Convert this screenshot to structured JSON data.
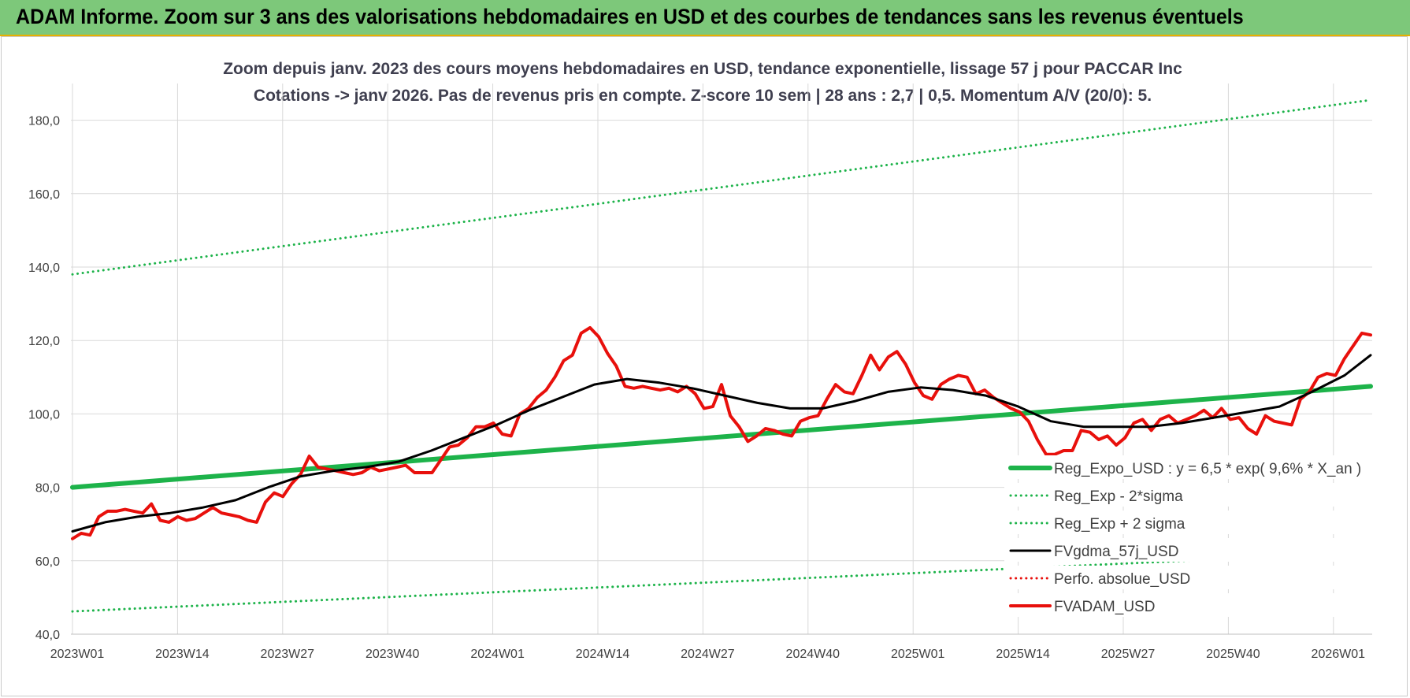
{
  "banner": {
    "title": "ADAM Informe. Zoom sur 3 ans des valorisations hebdomadaires en USD et des courbes de tendances sans les revenus éventuels"
  },
  "colors": {
    "banner_bg": "#7dc87a",
    "trend": "#1db34a",
    "fv57": "#000000",
    "fvadam": "#e8100c",
    "perfo": "#e8100c"
  },
  "chart_data": {
    "type": "line",
    "title": "Zoom depuis janv. 2023 des cours moyens hebdomadaires en USD, tendance exponentielle, lissage 57 j pour PACCAR Inc",
    "subtitle": "Cotations -> janv 2026. Pas de revenus pris en compte. Z-score 10 sem | 28 ans : 2,7 | 0,5. Momentum A/V (20/0): 5.",
    "xlabel": "",
    "ylabel": "",
    "ylim": [
      40,
      190
    ],
    "grid": true,
    "legend_position": "bottom-right",
    "y_ticks": [
      "40,0",
      "60,0",
      "80,0",
      "100,0",
      "120,0",
      "140,0",
      "160,0",
      "180,0"
    ],
    "x_tick_labels": [
      "2023W01",
      "2023W14",
      "2023W27",
      "2023W40",
      "2024W01",
      "2024W14",
      "2024W27",
      "2024W40",
      "2025W01",
      "2025W14",
      "2025W27",
      "2025W40",
      "2026W01"
    ],
    "n_weeks": 162,
    "series": [
      {
        "name": "Reg_Expo_USD : y = 6,5 * exp( 9,6% * X_an )",
        "style": "solid-thick",
        "color": "#1db34a",
        "points": [
          [
            0,
            80.0
          ],
          [
            161,
            107.5
          ]
        ]
      },
      {
        "name": "Reg_Exp - 2*sigma",
        "style": "dotted",
        "color": "#1db34a",
        "points": [
          [
            0,
            46.2
          ],
          [
            161,
            62.3
          ]
        ]
      },
      {
        "name": "Reg_Exp + 2 sigma",
        "style": "dotted",
        "color": "#1db34a",
        "points": [
          [
            0,
            138.0
          ],
          [
            161,
            185.5
          ]
        ]
      },
      {
        "name": "FVgdma_57j_USD",
        "style": "solid",
        "color": "#000000",
        "points": [
          [
            0,
            68.0
          ],
          [
            5,
            70.5
          ],
          [
            10,
            72.0
          ],
          [
            15,
            73.0
          ],
          [
            20,
            74.5
          ],
          [
            25,
            76.5
          ],
          [
            30,
            80.0
          ],
          [
            35,
            83.0
          ],
          [
            40,
            84.5
          ],
          [
            45,
            85.5
          ],
          [
            50,
            87.0
          ],
          [
            55,
            90.0
          ],
          [
            60,
            93.5
          ],
          [
            65,
            97.0
          ],
          [
            70,
            101.0
          ],
          [
            75,
            104.5
          ],
          [
            80,
            108.0
          ],
          [
            85,
            109.5
          ],
          [
            90,
            108.5
          ],
          [
            95,
            107.0
          ],
          [
            100,
            105.0
          ],
          [
            105,
            103.0
          ],
          [
            110,
            101.5
          ],
          [
            115,
            101.5
          ],
          [
            120,
            103.5
          ],
          [
            125,
            106.0
          ],
          [
            130,
            107.2
          ],
          [
            135,
            106.5
          ],
          [
            140,
            105.0
          ],
          [
            145,
            102.0
          ],
          [
            150,
            98.0
          ],
          [
            155,
            96.5
          ],
          [
            160,
            96.5
          ],
          [
            165,
            96.5
          ],
          [
            170,
            97.5
          ],
          [
            175,
            99.0
          ],
          [
            180,
            100.5
          ],
          [
            185,
            102.0
          ],
          [
            190,
            106.0
          ],
          [
            195,
            110.5
          ],
          [
            199,
            116.0
          ]
        ]
      },
      {
        "name": "Perfo. absolue_USD",
        "style": "dotted",
        "color": "#e8100c",
        "points": []
      },
      {
        "name": "FVADAM_USD",
        "style": "solid-thick",
        "color": "#e8100c",
        "points": [
          [
            0,
            66.0
          ],
          [
            2,
            67.5
          ],
          [
            4,
            67.0
          ],
          [
            6,
            72.0
          ],
          [
            8,
            73.5
          ],
          [
            10,
            73.5
          ],
          [
            12,
            74.0
          ],
          [
            14,
            73.5
          ],
          [
            16,
            73.0
          ],
          [
            18,
            75.5
          ],
          [
            20,
            71.0
          ],
          [
            22,
            70.5
          ],
          [
            24,
            72.0
          ],
          [
            26,
            71.0
          ],
          [
            28,
            71.5
          ],
          [
            30,
            73.0
          ],
          [
            32,
            74.5
          ],
          [
            34,
            73.0
          ],
          [
            36,
            72.5
          ],
          [
            38,
            72.0
          ],
          [
            40,
            71.0
          ],
          [
            42,
            70.5
          ],
          [
            44,
            76.0
          ],
          [
            46,
            78.5
          ],
          [
            48,
            77.5
          ],
          [
            50,
            81.0
          ],
          [
            52,
            83.5
          ],
          [
            54,
            88.5
          ],
          [
            56,
            85.5
          ],
          [
            58,
            85.0
          ],
          [
            60,
            84.5
          ],
          [
            62,
            84.0
          ],
          [
            64,
            83.5
          ],
          [
            66,
            84.0
          ],
          [
            68,
            85.5
          ],
          [
            70,
            84.5
          ],
          [
            72,
            85.0
          ],
          [
            74,
            85.5
          ],
          [
            76,
            86.0
          ],
          [
            78,
            84.0
          ],
          [
            80,
            84.0
          ],
          [
            82,
            84.0
          ],
          [
            84,
            87.5
          ],
          [
            86,
            91.0
          ],
          [
            88,
            91.5
          ],
          [
            90,
            93.5
          ],
          [
            92,
            96.5
          ],
          [
            94,
            96.5
          ],
          [
            96,
            97.5
          ],
          [
            98,
            94.5
          ],
          [
            100,
            94.0
          ],
          [
            102,
            100.0
          ],
          [
            104,
            101.5
          ],
          [
            106,
            104.5
          ],
          [
            108,
            106.5
          ],
          [
            110,
            110.0
          ],
          [
            112,
            114.5
          ],
          [
            114,
            116.0
          ],
          [
            116,
            122.0
          ],
          [
            118,
            123.5
          ],
          [
            120,
            121.0
          ],
          [
            122,
            116.5
          ],
          [
            124,
            113.0
          ],
          [
            126,
            107.5
          ],
          [
            128,
            107.0
          ],
          [
            130,
            107.5
          ],
          [
            132,
            107.0
          ],
          [
            134,
            106.5
          ],
          [
            136,
            107.0
          ],
          [
            138,
            106.0
          ],
          [
            140,
            107.5
          ],
          [
            142,
            105.5
          ],
          [
            144,
            101.5
          ],
          [
            146,
            102.0
          ],
          [
            148,
            108.0
          ],
          [
            150,
            99.5
          ],
          [
            152,
            96.5
          ],
          [
            154,
            92.5
          ],
          [
            156,
            94.0
          ],
          [
            158,
            96.0
          ],
          [
            160,
            95.5
          ],
          [
            162,
            94.5
          ],
          [
            164,
            94.0
          ],
          [
            166,
            98.0
          ],
          [
            168,
            99.0
          ],
          [
            170,
            99.5
          ],
          [
            172,
            104.0
          ],
          [
            174,
            108.0
          ],
          [
            176,
            106.0
          ],
          [
            178,
            105.5
          ],
          [
            180,
            110.5
          ],
          [
            182,
            116.0
          ],
          [
            184,
            112.0
          ],
          [
            186,
            115.5
          ],
          [
            188,
            117.0
          ],
          [
            190,
            113.5
          ],
          [
            192,
            108.5
          ],
          [
            194,
            105.0
          ],
          [
            196,
            104.0
          ],
          [
            198,
            108.0
          ],
          [
            200,
            109.5
          ],
          [
            202,
            110.5
          ],
          [
            204,
            110.0
          ],
          [
            206,
            105.5
          ],
          [
            208,
            106.5
          ],
          [
            210,
            104.5
          ],
          [
            212,
            103.0
          ],
          [
            214,
            101.5
          ],
          [
            216,
            100.5
          ],
          [
            218,
            98.0
          ],
          [
            220,
            93.0
          ],
          [
            222,
            89.0
          ],
          [
            224,
            89.0
          ],
          [
            226,
            90.0
          ],
          [
            228,
            90.0
          ],
          [
            230,
            95.5
          ],
          [
            232,
            95.0
          ],
          [
            234,
            93.0
          ],
          [
            236,
            94.0
          ],
          [
            238,
            91.5
          ],
          [
            240,
            93.5
          ],
          [
            242,
            97.5
          ],
          [
            244,
            98.5
          ],
          [
            246,
            95.5
          ],
          [
            248,
            98.5
          ],
          [
            250,
            99.5
          ],
          [
            252,
            97.5
          ],
          [
            254,
            98.5
          ],
          [
            256,
            99.5
          ],
          [
            258,
            101.0
          ],
          [
            260,
            99.0
          ],
          [
            262,
            101.5
          ],
          [
            264,
            98.5
          ],
          [
            266,
            99.0
          ],
          [
            268,
            96.0
          ],
          [
            270,
            94.5
          ],
          [
            272,
            99.5
          ],
          [
            274,
            98.0
          ],
          [
            276,
            97.5
          ],
          [
            278,
            97.0
          ],
          [
            280,
            104.0
          ],
          [
            282,
            106.0
          ],
          [
            284,
            110.0
          ],
          [
            286,
            111.0
          ],
          [
            288,
            110.5
          ],
          [
            290,
            115.0
          ],
          [
            292,
            118.5
          ],
          [
            294,
            122.0
          ],
          [
            296,
            121.5
          ]
        ]
      }
    ]
  }
}
